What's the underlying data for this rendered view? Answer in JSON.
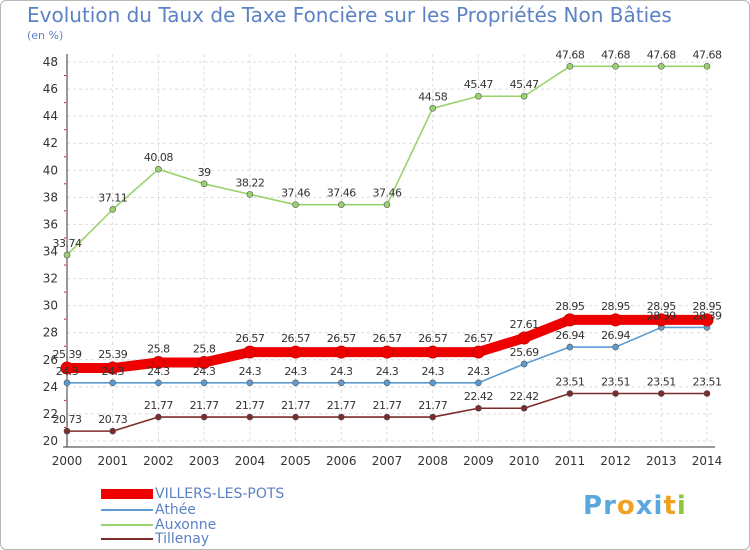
{
  "header": {
    "title": "Evolution du Taux de Taxe Foncière sur les Propriétés Non Bâties",
    "subtitle": "(en %)"
  },
  "chart_data": {
    "type": "line",
    "title": "Evolution du Taux de Taxe Foncière sur les Propriétés Non Bâties",
    "ylabel": "(en %)",
    "xlabel": "",
    "x": [
      "2000",
      "2001",
      "2002",
      "2003",
      "2004",
      "2005",
      "2006",
      "2007",
      "2008",
      "2009",
      "2010",
      "2011",
      "2012",
      "2013",
      "2014"
    ],
    "ylim": [
      20,
      48
    ],
    "yticks": [
      20,
      22,
      24,
      26,
      28,
      30,
      32,
      34,
      36,
      38,
      40,
      42,
      44,
      46,
      48
    ],
    "grid": true,
    "legend_position": "bottom-left",
    "series": [
      {
        "name": "VILLERS-LES-POTS",
        "color": "#ee0000",
        "emphasis": true,
        "values": [
          25.39,
          25.39,
          25.8,
          25.8,
          26.57,
          26.57,
          26.57,
          26.57,
          26.57,
          26.57,
          27.61,
          28.95,
          28.95,
          28.95,
          28.95
        ],
        "labels": [
          "25.39",
          "25.39",
          "25.8",
          "25.8",
          "26.57",
          "26.57",
          "26.57",
          "26.57",
          "26.57",
          "26.57",
          "27.61",
          "28.95",
          "28.95",
          "28.95",
          "28.95"
        ]
      },
      {
        "name": "Athée",
        "color": "#5d9bd0",
        "emphasis": false,
        "values": [
          24.3,
          24.3,
          24.3,
          24.3,
          24.3,
          24.3,
          24.3,
          24.3,
          24.3,
          24.3,
          25.69,
          26.94,
          26.94,
          28.39,
          28.39
        ],
        "labels": [
          "24.3",
          "24.3",
          "24.3",
          "24.3",
          "24.3",
          "24.3",
          "24.3",
          "24.3",
          "24.3",
          "24.3",
          "25.69",
          "26.94",
          "26.94",
          "28.39",
          "28.39"
        ]
      },
      {
        "name": "Auxonne",
        "color": "#98d36b",
        "emphasis": false,
        "values": [
          33.74,
          37.11,
          40.08,
          39,
          38.22,
          37.46,
          37.46,
          37.46,
          44.58,
          45.47,
          45.47,
          47.68,
          47.68,
          47.68,
          47.68
        ],
        "labels": [
          "33.74",
          "37.11",
          "40.08",
          "39",
          "38.22",
          "37.46",
          "37.46",
          "37.46",
          "44.58",
          "45.47",
          "45.47",
          "47.68",
          "47.68",
          "47.68",
          "47.68"
        ]
      },
      {
        "name": "Tillenay",
        "color": "#7b2b2b",
        "emphasis": false,
        "values": [
          20.73,
          20.73,
          21.77,
          21.77,
          21.77,
          21.77,
          21.77,
          21.77,
          21.77,
          22.42,
          22.42,
          23.51,
          23.51,
          23.51,
          23.51
        ],
        "labels": [
          "20.73",
          "20.73",
          "21.77",
          "21.77",
          "21.77",
          "21.77",
          "21.77",
          "21.77",
          "21.77",
          "22.42",
          "22.42",
          "23.51",
          "23.51",
          "23.51",
          "23.51"
        ]
      }
    ]
  },
  "logo": {
    "letters": [
      "P",
      "r",
      "o",
      "x",
      "i",
      "t",
      "i"
    ],
    "colors": [
      "#5aa8dd",
      "#5aa8dd",
      "#f0a020",
      "#5aa8dd",
      "#5aa8dd",
      "#f0a020",
      "#8cc83c"
    ]
  }
}
